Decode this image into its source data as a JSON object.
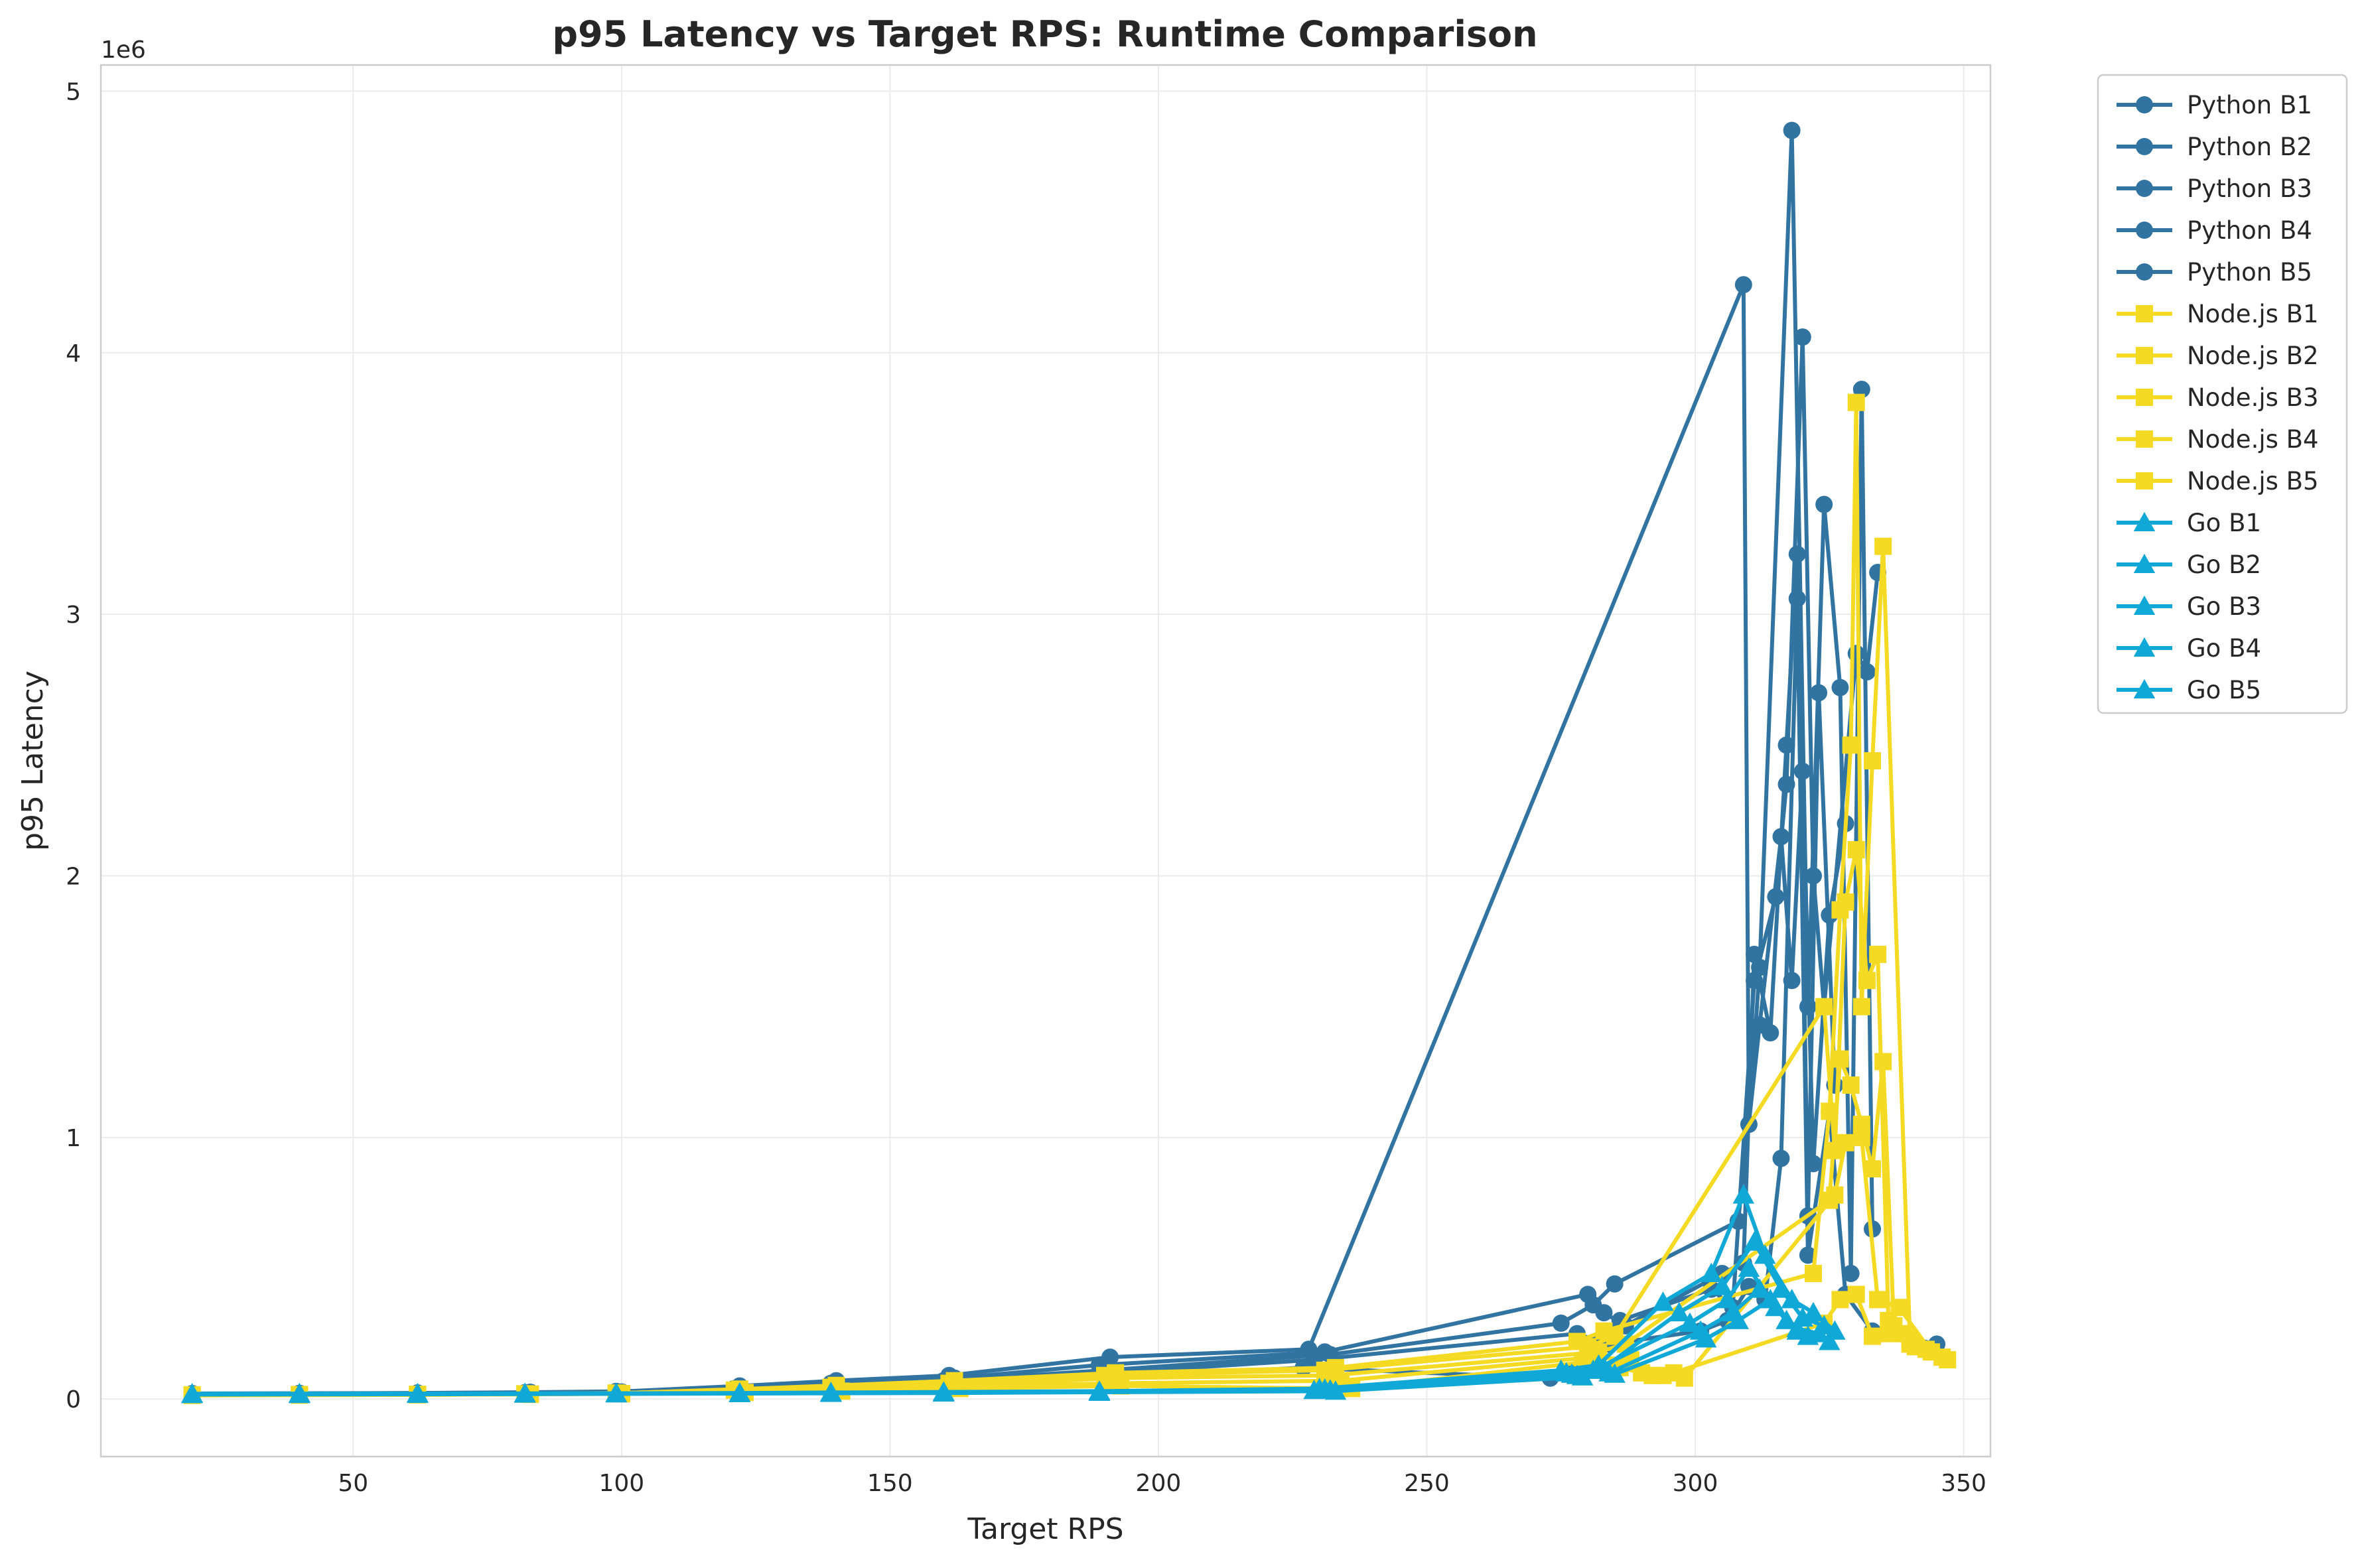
{
  "chart_data": {
    "type": "line",
    "title": "p95 Latency vs Target RPS: Runtime Comparison",
    "xlabel": "Target RPS",
    "ylabel": "p95 Latency",
    "y_offset_text": "1e6",
    "xlim": [
      3,
      355
    ],
    "ylim": [
      -220000,
      5100000
    ],
    "x_ticks": [
      50,
      100,
      150,
      200,
      250,
      300,
      350
    ],
    "x_tick_labels": [
      "50",
      "100",
      "150",
      "200",
      "250",
      "300",
      "350"
    ],
    "y_ticks": [
      0,
      1000000,
      2000000,
      3000000,
      4000000,
      5000000
    ],
    "y_tick_labels": [
      "0",
      "1",
      "2",
      "3",
      "4",
      "5"
    ],
    "grid": true,
    "legend_position": "outside-right-top",
    "runtime_colors": {
      "Python": "#3274A1",
      "Node.js": "#F4DA22",
      "Go": "#10A8D6"
    },
    "series": [
      {
        "name": "Python B1",
        "runtime": "Python",
        "marker": "circle",
        "color": "#3274A1",
        "x": [
          20,
          40,
          62,
          83,
          99,
          122,
          140,
          161,
          191,
          228,
          309,
          310,
          312,
          318,
          321,
          324,
          327,
          329,
          331,
          333
        ],
        "y": [
          20000,
          21000,
          23000,
          25000,
          28000,
          50000,
          70000,
          90000,
          160000,
          190000,
          4260000,
          1050000,
          1650000,
          4850000,
          1500000,
          3420000,
          2720000,
          480000,
          3860000,
          650000
        ]
      },
      {
        "name": "Python B2",
        "runtime": "Python",
        "marker": "circle",
        "color": "#3274A1",
        "x": [
          20,
          40,
          62,
          82,
          100,
          122,
          139,
          162,
          189,
          231,
          280,
          283,
          287,
          305,
          309,
          311,
          314,
          317,
          319,
          321,
          323,
          326
        ],
        "y": [
          19000,
          20000,
          22000,
          24000,
          27000,
          45000,
          60000,
          80000,
          130000,
          180000,
          400000,
          330000,
          280000,
          480000,
          520000,
          1700000,
          1400000,
          2500000,
          3230000,
          700000,
          2700000,
          1200000
        ]
      },
      {
        "name": "Python B3",
        "runtime": "Python",
        "marker": "circle",
        "color": "#3274A1",
        "x": [
          20,
          40,
          62,
          83,
          99,
          121,
          139,
          160,
          190,
          232,
          275,
          281,
          285,
          308,
          312,
          316,
          318,
          320,
          322,
          325,
          328
        ],
        "y": [
          21000,
          22000,
          23000,
          26000,
          29000,
          40000,
          55000,
          70000,
          110000,
          170000,
          290000,
          360000,
          440000,
          680000,
          1430000,
          2150000,
          1600000,
          2400000,
          900000,
          1850000,
          2200000
        ]
      },
      {
        "name": "Python B4",
        "runtime": "Python",
        "marker": "circle",
        "color": "#3274A1",
        "x": [
          20,
          40,
          62,
          82,
          99,
          122,
          140,
          161,
          191,
          229,
          278,
          282,
          286,
          303,
          307,
          311,
          315,
          317,
          320,
          322,
          324,
          330,
          332,
          334
        ],
        "y": [
          20000,
          21000,
          22000,
          24000,
          26000,
          35000,
          50000,
          60000,
          100000,
          150000,
          250000,
          220000,
          300000,
          420000,
          350000,
          1600000,
          1920000,
          2350000,
          4060000,
          2000000,
          1500000,
          2850000,
          2780000,
          3160000
        ]
      },
      {
        "name": "Python B5",
        "runtime": "Python",
        "marker": "circle",
        "color": "#3274A1",
        "x": [
          20,
          40,
          62,
          83,
          100,
          123,
          141,
          162,
          191,
          227,
          273,
          279,
          284,
          301,
          306,
          310,
          313,
          316,
          319,
          321,
          325,
          328,
          333,
          345
        ],
        "y": [
          18000,
          19000,
          21000,
          23000,
          25000,
          30000,
          40000,
          50000,
          80000,
          120000,
          80000,
          150000,
          210000,
          260000,
          300000,
          430000,
          380000,
          920000,
          3060000,
          550000,
          1100000,
          400000,
          260000,
          210000
        ]
      },
      {
        "name": "Node.js B1",
        "runtime": "Node.js",
        "marker": "square",
        "color": "#F4DA22",
        "x": [
          20,
          40,
          62,
          83,
          99,
          122,
          140,
          162,
          192,
          233,
          278,
          283,
          322,
          325,
          327,
          329,
          330,
          331,
          333,
          335,
          340,
          346
        ],
        "y": [
          15000,
          16000,
          17000,
          19000,
          22000,
          38000,
          52000,
          70000,
          100000,
          120000,
          220000,
          260000,
          480000,
          1100000,
          1870000,
          2500000,
          3810000,
          1500000,
          2440000,
          3260000,
          230000,
          160000
        ]
      },
      {
        "name": "Node.js B2",
        "runtime": "Node.js",
        "marker": "square",
        "color": "#F4DA22",
        "x": [
          20,
          40,
          62,
          82,
          99,
          121,
          139,
          161,
          190,
          231,
          280,
          285,
          324,
          326,
          328,
          330,
          332,
          334,
          336,
          339,
          343
        ],
        "y": [
          16000,
          17000,
          18000,
          20000,
          23000,
          34000,
          45000,
          60000,
          90000,
          110000,
          200000,
          240000,
          1500000,
          950000,
          1900000,
          2100000,
          1600000,
          1700000,
          300000,
          250000,
          190000
        ]
      },
      {
        "name": "Node.js B3",
        "runtime": "Node.js",
        "marker": "square",
        "color": "#F4DA22",
        "x": [
          20,
          40,
          62,
          83,
          100,
          122,
          140,
          162,
          192,
          232,
          282,
          287,
          325,
          327,
          329,
          331,
          333,
          335,
          337,
          341
        ],
        "y": [
          14000,
          15000,
          16000,
          18000,
          21000,
          30000,
          40000,
          50000,
          80000,
          90000,
          180000,
          210000,
          760000,
          1300000,
          1200000,
          1050000,
          880000,
          1290000,
          280000,
          200000
        ]
      },
      {
        "name": "Node.js B4",
        "runtime": "Node.js",
        "marker": "square",
        "color": "#F4DA22",
        "x": [
          20,
          40,
          62,
          82,
          99,
          122,
          140,
          161,
          191,
          234,
          281,
          288,
          290,
          294,
          298,
          326,
          328,
          331,
          334,
          338,
          344
        ],
        "y": [
          15000,
          16000,
          17000,
          19000,
          22000,
          28000,
          35000,
          45000,
          60000,
          70000,
          160000,
          150000,
          100000,
          90000,
          80000,
          780000,
          980000,
          1000000,
          380000,
          350000,
          180000
        ]
      },
      {
        "name": "Node.js B5",
        "runtime": "Node.js",
        "marker": "square",
        "color": "#F4DA22",
        "x": [
          20,
          40,
          62,
          83,
          100,
          123,
          141,
          163,
          193,
          236,
          279,
          286,
          292,
          296,
          324,
          327,
          330,
          333,
          336,
          340,
          347
        ],
        "y": [
          14000,
          15000,
          16000,
          18000,
          20000,
          25000,
          30000,
          40000,
          50000,
          40000,
          140000,
          120000,
          90000,
          100000,
          290000,
          380000,
          400000,
          240000,
          250000,
          210000,
          150000
        ]
      },
      {
        "name": "Go B1",
        "runtime": "Go",
        "marker": "triangle",
        "color": "#10A8D6",
        "x": [
          20,
          40,
          62,
          82,
          99,
          122,
          139,
          160,
          189,
          230,
          275,
          282,
          294,
          303,
          309,
          313,
          318,
          322,
          326
        ],
        "y": [
          20000,
          20500,
          21000,
          21500,
          22000,
          23000,
          25000,
          27000,
          30000,
          40000,
          110000,
          130000,
          370000,
          480000,
          780000,
          550000,
          380000,
          330000,
          260000
        ]
      },
      {
        "name": "Go B2",
        "runtime": "Go",
        "marker": "triangle",
        "color": "#10A8D6",
        "x": [
          20,
          40,
          62,
          82,
          99,
          122,
          139,
          160,
          189,
          231,
          276,
          283,
          297,
          305,
          311,
          316,
          320,
          324
        ],
        "y": [
          19000,
          19500,
          20000,
          21000,
          21500,
          22500,
          24000,
          26000,
          29000,
          38000,
          100000,
          120000,
          330000,
          430000,
          600000,
          420000,
          310000,
          280000
        ]
      },
      {
        "name": "Go B3",
        "runtime": "Go",
        "marker": "triangle",
        "color": "#10A8D6",
        "x": [
          20,
          40,
          62,
          82,
          99,
          122,
          139,
          160,
          189,
          232,
          277,
          281,
          299,
          306,
          310,
          315,
          319,
          323
        ],
        "y": [
          18000,
          18500,
          19000,
          20000,
          21000,
          22000,
          23000,
          25000,
          28000,
          35000,
          95000,
          110000,
          290000,
          380000,
          500000,
          350000,
          270000,
          250000
        ]
      },
      {
        "name": "Go B4",
        "runtime": "Go",
        "marker": "triangle",
        "color": "#10A8D6",
        "x": [
          20,
          40,
          62,
          82,
          99,
          122,
          139,
          160,
          189,
          229,
          278,
          284,
          301,
          307,
          312,
          317,
          321
        ],
        "y": [
          18000,
          18500,
          19000,
          19500,
          20500,
          21500,
          22500,
          24000,
          27000,
          33000,
          90000,
          100000,
          260000,
          330000,
          420000,
          300000,
          240000
        ]
      },
      {
        "name": "Go B5",
        "runtime": "Go",
        "marker": "triangle",
        "color": "#10A8D6",
        "x": [
          20,
          40,
          62,
          82,
          99,
          122,
          139,
          160,
          189,
          233,
          279,
          285,
          302,
          308,
          314,
          319,
          325
        ],
        "y": [
          17000,
          17500,
          18000,
          19000,
          20000,
          21000,
          22000,
          23000,
          26000,
          30000,
          85000,
          95000,
          230000,
          300000,
          380000,
          260000,
          220000
        ]
      }
    ]
  }
}
